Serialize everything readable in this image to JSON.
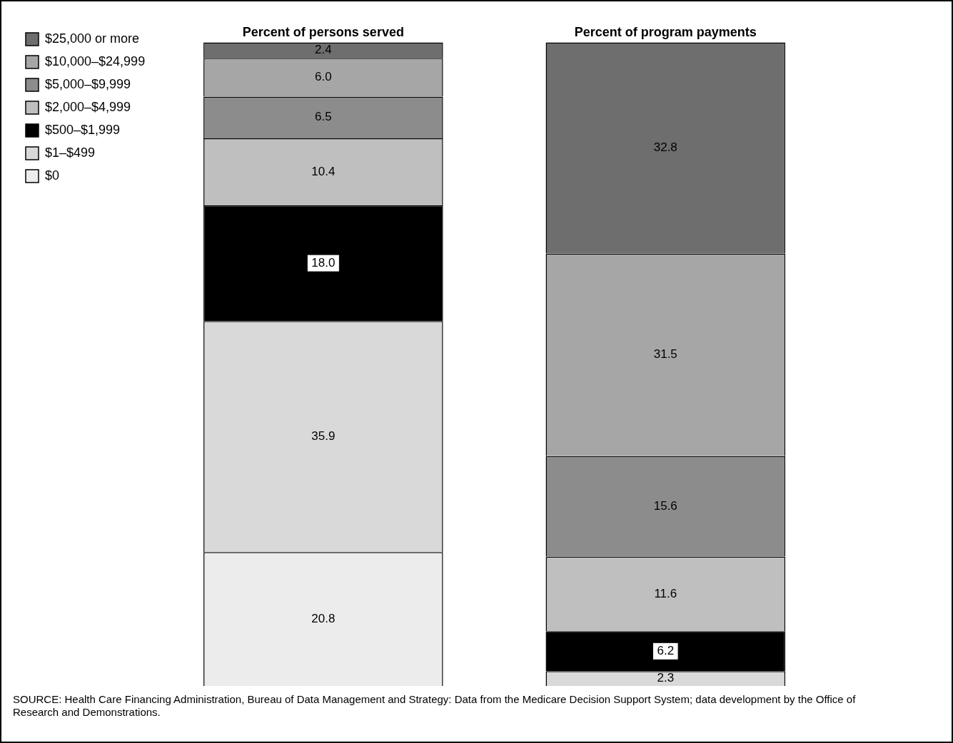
{
  "chart_data": {
    "type": "bar",
    "stacked": true,
    "categories": [
      "Percent of persons served",
      "Percent of program payments"
    ],
    "series": [
      {
        "name": "$0",
        "color": "#ececec",
        "values": [
          20.8,
          null
        ],
        "value_labels": [
          "20.8",
          null
        ]
      },
      {
        "name": "$1–$499",
        "color": "#d9d9d9",
        "values": [
          35.9,
          2.3
        ],
        "value_labels": [
          "35.9",
          "2.3"
        ]
      },
      {
        "name": "$500–$1,999",
        "color": "#000000",
        "values": [
          18.0,
          6.2
        ],
        "value_labels": [
          "18.0",
          "6.2"
        ]
      },
      {
        "name": "$2,000–$4,999",
        "color": "#bfbfbf",
        "values": [
          10.4,
          11.6
        ],
        "value_labels": [
          "10.4",
          "11.6"
        ]
      },
      {
        "name": "$5,000–$9,999",
        "color": "#8c8c8c",
        "values": [
          6.5,
          15.6
        ],
        "value_labels": [
          "6.5",
          "15.6"
        ]
      },
      {
        "name": "$10,000–$24,999",
        "color": "#a6a6a6",
        "values": [
          6.0,
          31.5
        ],
        "value_labels": [
          "6.0",
          "31.5"
        ]
      },
      {
        "name": "$25,000 or more",
        "color": "#6e6e6e",
        "values": [
          2.4,
          32.8
        ],
        "value_labels": [
          "2.4",
          "32.8"
        ]
      }
    ],
    "ylim": [
      0,
      100
    ],
    "tick_labels": "x",
    "grid": false,
    "legend": "top left",
    "annotations": [
      "SOURCE: Health Care Financing Administration, Bureau of Data Management and Strategy: Data from the Medicare Decision Support System; data development by the Office of Research and Demonstrations."
    ]
  }
}
